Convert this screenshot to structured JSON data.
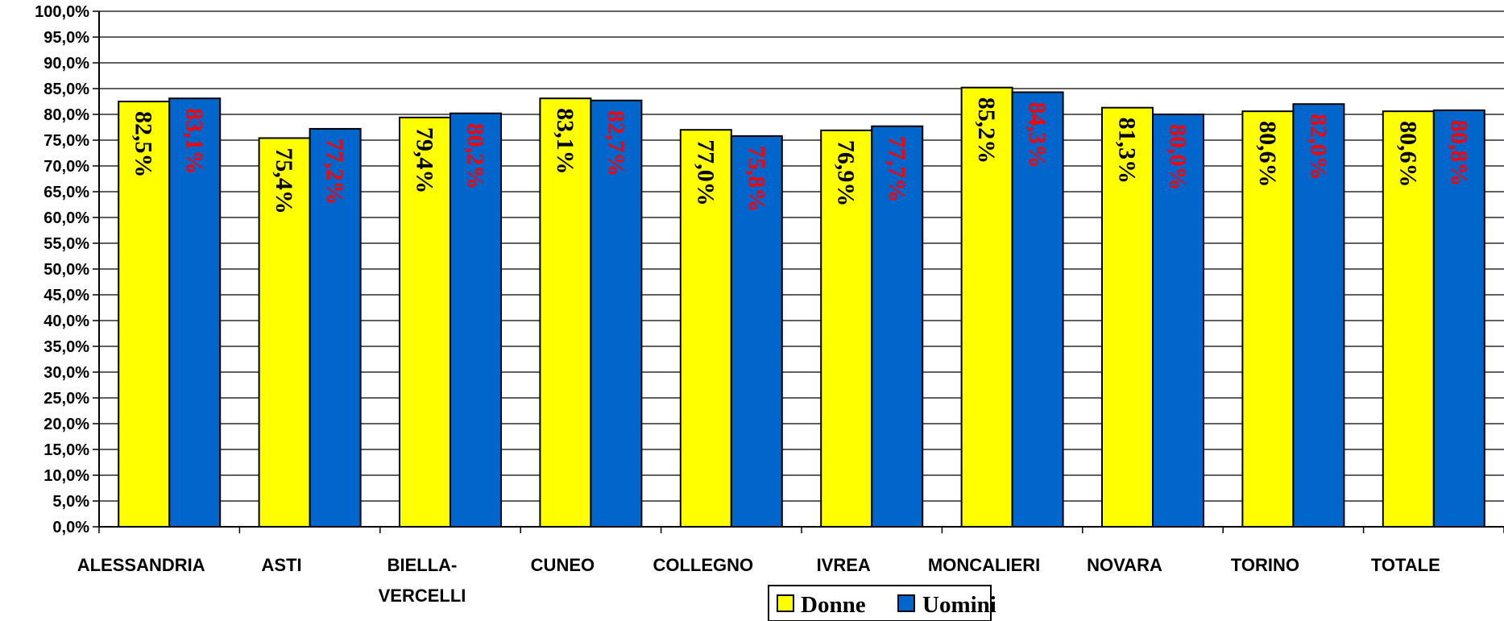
{
  "chart_data": {
    "type": "bar",
    "categories": [
      [
        "ALESSANDRIA"
      ],
      [
        "ASTI"
      ],
      [
        "BIELLA-",
        "VERCELLI"
      ],
      [
        "CUNEO"
      ],
      [
        "COLLEGNO"
      ],
      [
        "IVREA"
      ],
      [
        "MONCALIERI"
      ],
      [
        "NOVARA"
      ],
      [
        "TORINO"
      ],
      [
        "TOTALE"
      ]
    ],
    "series": [
      {
        "name": "Donne",
        "color": "#FFFF00",
        "label_color": "#000000",
        "values": [
          82.5,
          75.4,
          79.4,
          83.1,
          77.0,
          76.9,
          85.2,
          81.3,
          80.6,
          80.6
        ],
        "labels": [
          "82,5%",
          "75,4%",
          "79,4%",
          "83,1%",
          "77,0%",
          "76,9%",
          "85,2%",
          "81,3%",
          "80,6%",
          "80,6%"
        ]
      },
      {
        "name": "Uomini",
        "color": "#0066CC",
        "label_color": "#FF0000",
        "values": [
          83.1,
          77.2,
          80.2,
          82.7,
          75.8,
          77.7,
          84.3,
          80.0,
          82.0,
          80.8
        ],
        "labels": [
          "83,1%",
          "77,2%",
          "80,2%",
          "82,7%",
          "75,8%",
          "77,7%",
          "84,3%",
          "80,0%",
          "82,0%",
          "80,8%"
        ]
      }
    ],
    "ylim": [
      0,
      100
    ],
    "ytick_step": 5,
    "ytick_labels": [
      "0,0%",
      "5,0%",
      "10,0%",
      "15,0%",
      "20,0%",
      "25,0%",
      "30,0%",
      "35,0%",
      "40,0%",
      "45,0%",
      "50,0%",
      "55,0%",
      "60,0%",
      "65,0%",
      "70,0%",
      "75,0%",
      "80,0%",
      "85,0%",
      "90,0%",
      "95,0%",
      "100,0%"
    ],
    "grid": true,
    "legend": "bottom-center",
    "title": "",
    "xlabel": "",
    "ylabel": ""
  }
}
